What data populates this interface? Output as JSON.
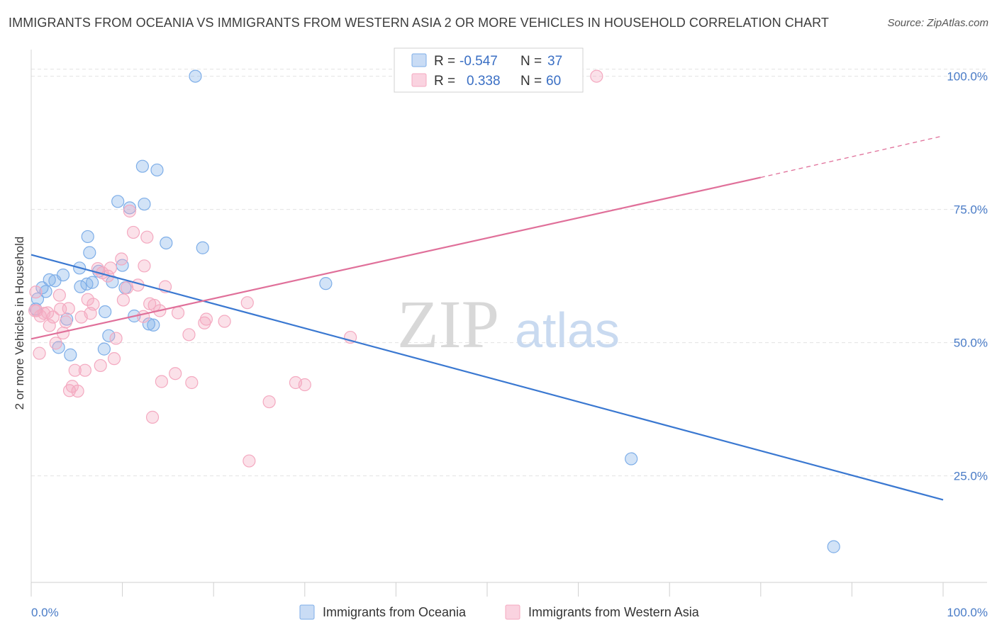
{
  "title": "IMMIGRANTS FROM OCEANIA VS IMMIGRANTS FROM WESTERN ASIA 2 OR MORE VEHICLES IN HOUSEHOLD CORRELATION CHART",
  "source": "Source: ZipAtlas.com",
  "watermark": {
    "zip": "ZIP",
    "atlas": "atlas"
  },
  "chart_data": {
    "type": "scatter",
    "xlabel": "",
    "ylabel": "2 or more Vehicles in Household",
    "xlim": [
      0,
      100
    ],
    "ylim": [
      5,
      105
    ],
    "x_tick_labels": [
      "0.0%",
      "100.0%"
    ],
    "y_ticks": [
      25,
      50,
      75,
      100
    ],
    "y_tick_labels": [
      "25.0%",
      "50.0%",
      "75.0%",
      "100.0%"
    ],
    "grid": true,
    "legend_placement": "top-center",
    "series": [
      {
        "name": "Immigrants from Oceania",
        "color": "#7eaee8",
        "line_color": "#3a78d1",
        "R": "-0.547",
        "N": "37",
        "trend": {
          "x": [
            0,
            100
          ],
          "y": [
            66.5,
            20.5
          ],
          "dashed_from": null
        },
        "points": [
          [
            0.5,
            56.3
          ],
          [
            0.7,
            58.2
          ],
          [
            1.2,
            60.3
          ],
          [
            1.6,
            59.6
          ],
          [
            2.0,
            61.8
          ],
          [
            2.6,
            61.6
          ],
          [
            3.5,
            62.7
          ],
          [
            3.9,
            54.4
          ],
          [
            4.3,
            47.7
          ],
          [
            3.0,
            49.1
          ],
          [
            5.3,
            64.0
          ],
          [
            5.4,
            60.5
          ],
          [
            6.1,
            61.0
          ],
          [
            6.2,
            69.9
          ],
          [
            6.4,
            66.9
          ],
          [
            6.7,
            61.3
          ],
          [
            7.4,
            63.4
          ],
          [
            8.0,
            48.8
          ],
          [
            8.1,
            55.8
          ],
          [
            8.5,
            51.3
          ],
          [
            8.9,
            61.4
          ],
          [
            9.5,
            76.5
          ],
          [
            10.0,
            64.5
          ],
          [
            10.3,
            60.3
          ],
          [
            10.8,
            75.3
          ],
          [
            11.3,
            55.0
          ],
          [
            12.2,
            83.1
          ],
          [
            12.4,
            76.0
          ],
          [
            12.9,
            53.5
          ],
          [
            13.4,
            53.3
          ],
          [
            13.8,
            82.4
          ],
          [
            14.8,
            68.7
          ],
          [
            18.0,
            100.0
          ],
          [
            18.8,
            67.8
          ],
          [
            32.3,
            61.1
          ],
          [
            65.8,
            28.2
          ],
          [
            88.0,
            11.7
          ]
        ]
      },
      {
        "name": "Immigrants from Western Asia",
        "color": "#f4a9c0",
        "line_color": "#e0709a",
        "R": "0.338",
        "N": "60",
        "trend": {
          "x": [
            0,
            80
          ],
          "y": [
            50.7,
            81.0
          ],
          "dashed_to": [
            100,
            88.8
          ]
        },
        "points": [
          [
            0.5,
            59.5
          ],
          [
            0.6,
            56.0
          ],
          [
            0.9,
            48.0
          ],
          [
            1.4,
            55.5
          ],
          [
            1.8,
            55.6
          ],
          [
            2.0,
            53.2
          ],
          [
            2.4,
            54.8
          ],
          [
            2.7,
            49.9
          ],
          [
            3.1,
            58.9
          ],
          [
            3.2,
            56.3
          ],
          [
            3.5,
            51.8
          ],
          [
            3.8,
            53.9
          ],
          [
            4.1,
            56.4
          ],
          [
            4.2,
            41.0
          ],
          [
            4.5,
            41.8
          ],
          [
            4.8,
            44.8
          ],
          [
            5.1,
            40.9
          ],
          [
            5.5,
            54.8
          ],
          [
            5.9,
            44.8
          ],
          [
            6.2,
            58.1
          ],
          [
            6.5,
            55.5
          ],
          [
            6.8,
            57.2
          ],
          [
            7.3,
            63.9
          ],
          [
            7.6,
            45.7
          ],
          [
            7.8,
            63.1
          ],
          [
            8.4,
            62.5
          ],
          [
            8.7,
            64.0
          ],
          [
            9.1,
            47.0
          ],
          [
            9.3,
            50.8
          ],
          [
            9.9,
            65.7
          ],
          [
            10.1,
            58.0
          ],
          [
            10.5,
            60.3
          ],
          [
            10.8,
            74.7
          ],
          [
            11.2,
            70.7
          ],
          [
            11.7,
            60.8
          ],
          [
            12.3,
            54.9
          ],
          [
            12.4,
            64.4
          ],
          [
            12.7,
            69.8
          ],
          [
            13.0,
            57.3
          ],
          [
            13.5,
            57.0
          ],
          [
            13.3,
            36.0
          ],
          [
            14.1,
            56.0
          ],
          [
            14.3,
            42.7
          ],
          [
            14.7,
            60.5
          ],
          [
            15.8,
            44.2
          ],
          [
            16.1,
            55.6
          ],
          [
            17.3,
            51.5
          ],
          [
            17.6,
            42.5
          ],
          [
            19.0,
            53.7
          ],
          [
            19.2,
            54.4
          ],
          [
            21.2,
            54.0
          ],
          [
            23.7,
            57.5
          ],
          [
            23.9,
            27.8
          ],
          [
            26.1,
            38.9
          ],
          [
            29.0,
            42.5
          ],
          [
            30.0,
            42.1
          ],
          [
            35.0,
            51.0
          ],
          [
            62.0,
            100.0
          ],
          [
            0.4,
            56.0
          ],
          [
            1.0,
            55.0
          ]
        ]
      }
    ]
  },
  "legend": {
    "r_label": "R =",
    "n_label": "N ="
  }
}
